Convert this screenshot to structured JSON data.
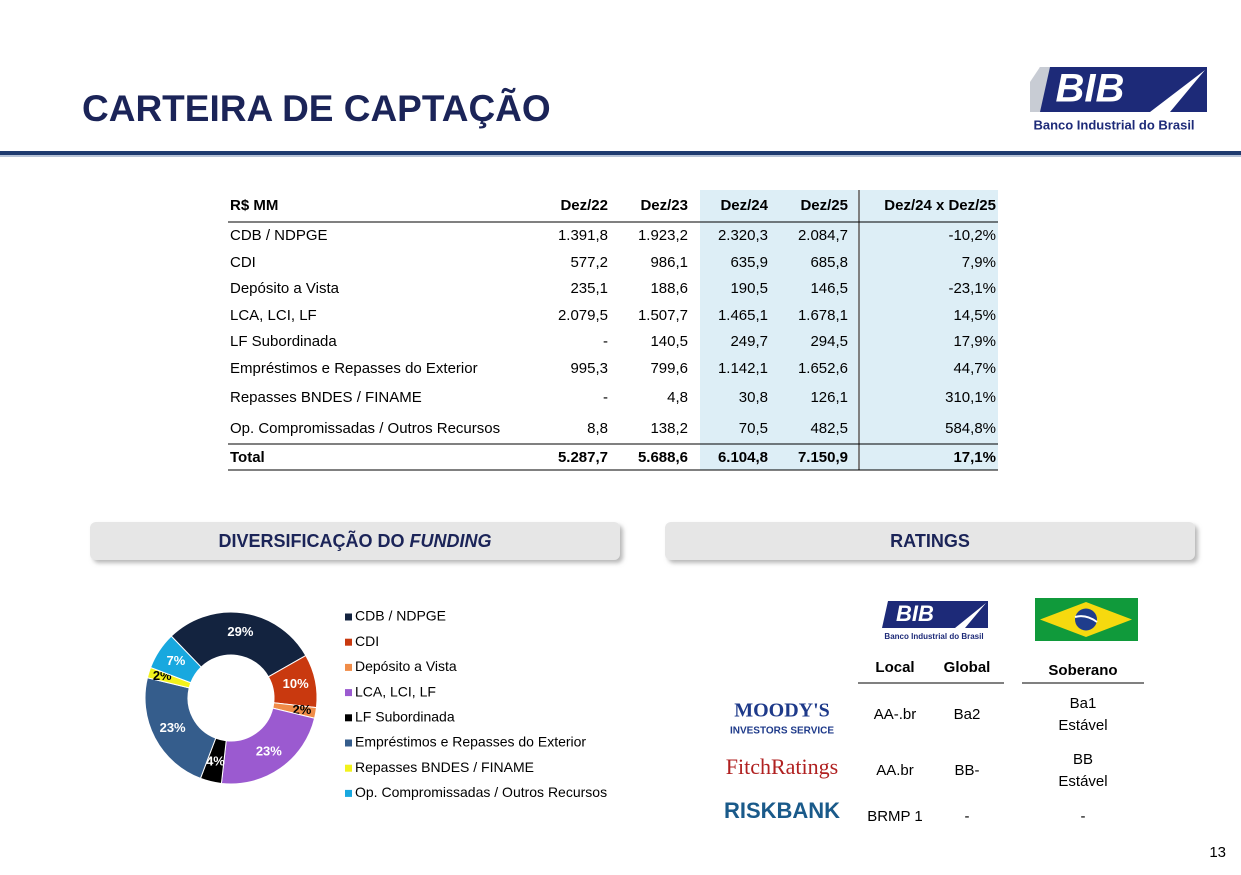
{
  "header": {
    "title": "CARTEIRA DE CAPTAÇÃO",
    "logo": {
      "mark": "BIB",
      "name": "Banco Industrial do Brasil"
    }
  },
  "table": {
    "columns": [
      "R$ MM",
      "Dez/22",
      "Dez/23",
      "Dez/24",
      "Dez/25",
      "Dez/24 x Dez/25"
    ],
    "rows": [
      [
        "CDB / NDPGE",
        "1.391,8",
        "1.923,2",
        "2.320,3",
        "2.084,7",
        "-10,2%"
      ],
      [
        "CDI",
        "577,2",
        "986,1",
        "635,9",
        "685,8",
        "7,9%"
      ],
      [
        "Depósito a Vista",
        "235,1",
        "188,6",
        "190,5",
        "146,5",
        "-23,1%"
      ],
      [
        "LCA, LCI, LF",
        "2.079,5",
        "1.507,7",
        "1.465,1",
        "1.678,1",
        "14,5%"
      ],
      [
        "LF Subordinada",
        "-",
        "140,5",
        "249,7",
        "294,5",
        "17,9%"
      ],
      [
        "Empréstimos e Repasses do Exterior",
        "995,3",
        "799,6",
        "1.142,1",
        "1.652,6",
        "44,7%"
      ],
      [
        "Repasses BNDES / FINAME",
        "-",
        "4,8",
        "30,8",
        "126,1",
        "310,1%"
      ],
      [
        "Op. Compromissadas / Outros Recursos",
        "8,8",
        "138,2",
        "70,5",
        "482,5",
        "584,8%"
      ]
    ],
    "total": [
      "Total",
      "5.287,7",
      "5.688,6",
      "6.104,8",
      "7.150,9",
      "17,1%"
    ]
  },
  "funding": {
    "heading": [
      "DIVERSIFICAÇÃO DO ",
      "FUNDING"
    ],
    "chart": {
      "type": "pie",
      "categories": [
        "CDB / NDPGE",
        "CDI",
        "Depósito a Vista",
        "LCA, LCI, LF",
        "LF Subordinada",
        "Empréstimos e Repasses do Exterior",
        "Repasses BNDES / FINAME",
        "Op. Compromissadas / Outros Recursos"
      ],
      "values": [
        29,
        10,
        2,
        23,
        4,
        23,
        2,
        7
      ],
      "value_labels": [
        "29%",
        "10%",
        "2%",
        "23%",
        "4%",
        "23%",
        "2%",
        "7%"
      ],
      "colors": [
        "#13233f",
        "#c9390f",
        "#f08c48",
        "#9b5ad0",
        "#000000",
        "#355d8c",
        "#f2f21c",
        "#18a8df"
      ],
      "legend": "right"
    }
  },
  "ratings": {
    "heading": "RATINGS",
    "logo": {
      "mark": "BIB",
      "name": "Banco Industrial do Brasil"
    },
    "columns": [
      "Local",
      "Global",
      "Soberano"
    ],
    "agencies": [
      {
        "logo": [
          "MOODY'S",
          "INVESTORS SERVICE"
        ],
        "local": "AA-.br",
        "global": "Ba2",
        "sovereign": [
          "Ba1",
          "Estável"
        ]
      },
      {
        "logo": [
          "FitchRatings"
        ],
        "local": "AA.br",
        "global": "BB-",
        "sovereign": [
          "BB",
          "Estável"
        ]
      },
      {
        "logo": [
          "RISKBANK"
        ],
        "local": "BRMP 1",
        "global": "-",
        "sovereign": [
          "-"
        ]
      }
    ]
  },
  "page_number": "13"
}
